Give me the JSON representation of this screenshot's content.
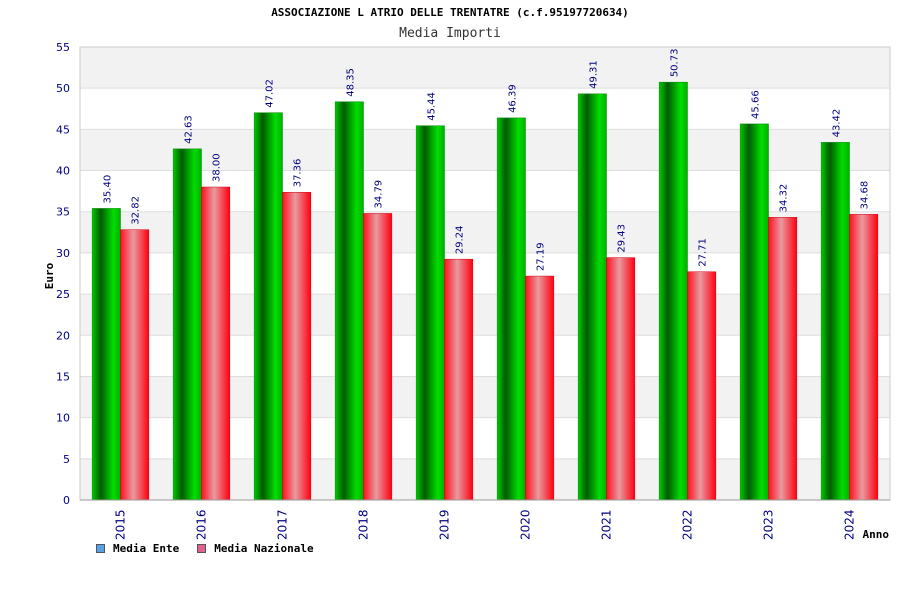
{
  "colors": {
    "series_ente": "#00b000",
    "series_nazionale": "#f01020",
    "legend_ente": "#5aa0e8",
    "legend_nazionale": "#e06090",
    "band": "#f2f2f2",
    "tick_text": "#000080"
  },
  "chart_data": {
    "type": "bar",
    "title": "ASSOCIAZIONE L ATRIO DELLE TRENTATRE (c.f.95197720634)",
    "subtitle": "Media Importi",
    "xlabel": "Anno",
    "ylabel": "Euro",
    "ylim": [
      0,
      55
    ],
    "yticks": [
      0,
      5,
      10,
      15,
      20,
      25,
      30,
      35,
      40,
      45,
      50,
      55
    ],
    "grid": "horizontal alternating bands",
    "legend_position": "bottom-left",
    "categories": [
      "2015",
      "2016",
      "2017",
      "2018",
      "2019",
      "2020",
      "2021",
      "2022",
      "2023",
      "2024"
    ],
    "series": [
      {
        "name": "Media Ente",
        "values": [
          35.4,
          42.63,
          47.02,
          48.35,
          45.44,
          46.39,
          49.31,
          50.73,
          45.66,
          43.42
        ],
        "labels": [
          "35.40",
          "42.63",
          "47.02",
          "48.35",
          "45.44",
          "46.39",
          "49.31",
          "50.73",
          "45.66",
          "43.42"
        ]
      },
      {
        "name": "Media Nazionale",
        "values": [
          32.82,
          38.0,
          37.36,
          34.79,
          29.24,
          27.19,
          29.43,
          27.71,
          34.32,
          34.68
        ],
        "labels": [
          "32.82",
          "38.00",
          "37.36",
          "34.79",
          "29.24",
          "27.19",
          "29.43",
          "27.71",
          "34.32",
          "34.68"
        ]
      }
    ]
  }
}
